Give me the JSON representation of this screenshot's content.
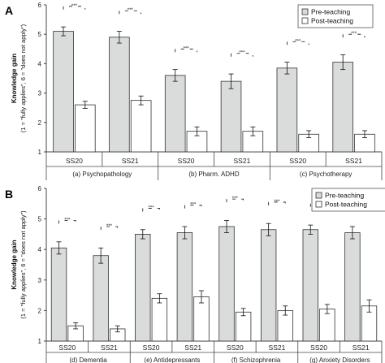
{
  "legend": {
    "pre": "Pre-teaching",
    "post": "Post-teaching"
  },
  "colors": {
    "pre": "#d9dcdb",
    "post": "#ffffff",
    "stroke": "#333333"
  },
  "ylabel_main": "Knowledge gain",
  "ylabel_sub": "(1 = \"fully applies\", 6 = \"does not apply\")",
  "significance_label": "***",
  "chart_data": [
    {
      "type": "bar",
      "panel_label": "A",
      "ylim": [
        1,
        6
      ],
      "yticks": [
        1,
        2,
        3,
        4,
        5,
        6
      ],
      "ylabel": "Knowledge gain (1 = \"fully applies\", 6 = \"does not apply\")",
      "legend_position": "top-right",
      "groups": [
        "(a) Psychopathology",
        "(b) Pharm. ADHD",
        "(c) Psychotherapy"
      ],
      "categories": [
        "SS20",
        "SS21",
        "SS20",
        "SS21",
        "SS20",
        "SS21"
      ],
      "series": [
        {
          "name": "Pre-teaching",
          "values": [
            5.1,
            4.9,
            3.6,
            3.4,
            3.85,
            4.05
          ],
          "errors": [
            0.15,
            0.2,
            0.2,
            0.25,
            0.2,
            0.25
          ]
        },
        {
          "name": "Post-teaching",
          "values": [
            2.6,
            2.75,
            1.7,
            1.7,
            1.6,
            1.6
          ],
          "errors": [
            0.12,
            0.15,
            0.15,
            0.15,
            0.12,
            0.12
          ]
        }
      ],
      "annotations": [
        "***",
        "***",
        "***",
        "***",
        "***",
        "***"
      ]
    },
    {
      "type": "bar",
      "panel_label": "B",
      "ylim": [
        1,
        6
      ],
      "yticks": [
        1,
        2,
        3,
        4,
        5,
        6
      ],
      "ylabel": "Knowledge gain (1 = \"fully applies\", 6 = \"does not apply\")",
      "legend_position": "top-right",
      "groups": [
        "(d) Dementia",
        "(e) Antidepressants",
        "(f) Schizophrenia",
        "(g) Anxiety Disorders"
      ],
      "categories": [
        "SS20",
        "SS21",
        "SS20",
        "SS21",
        "SS20",
        "SS21",
        "SS20",
        "SS21"
      ],
      "series": [
        {
          "name": "Pre-teaching",
          "values": [
            4.05,
            3.8,
            4.5,
            4.55,
            4.75,
            4.65,
            4.65,
            4.55
          ],
          "errors": [
            0.2,
            0.25,
            0.15,
            0.2,
            0.2,
            0.2,
            0.15,
            0.2
          ]
        },
        {
          "name": "Post-teaching",
          "values": [
            1.5,
            1.4,
            2.4,
            2.45,
            1.95,
            2.0,
            2.05,
            2.15
          ],
          "errors": [
            0.1,
            0.1,
            0.15,
            0.2,
            0.12,
            0.15,
            0.15,
            0.2
          ]
        }
      ],
      "annotations": [
        "***",
        "***",
        "***",
        "***",
        "***",
        "***",
        "***",
        "***"
      ]
    }
  ]
}
